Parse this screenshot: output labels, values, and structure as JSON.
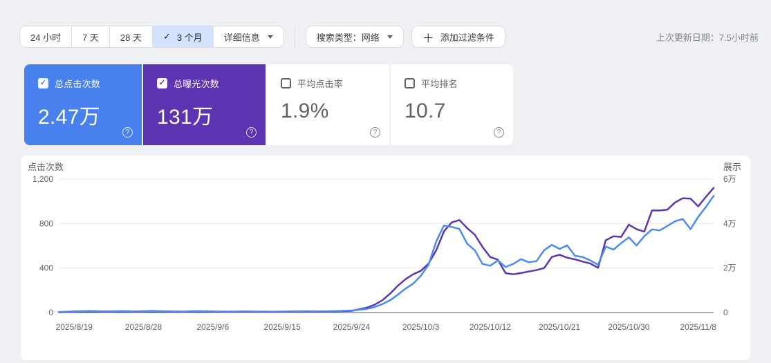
{
  "page": {
    "last_updated": "上次更新日期：7.5小时前",
    "background": "#eef0f4"
  },
  "toolbar": {
    "date_ranges": [
      {
        "label": "24 小时",
        "selected": false
      },
      {
        "label": "7 天",
        "selected": false
      },
      {
        "label": "28 天",
        "selected": false
      },
      {
        "label": "3 个月",
        "selected": true
      }
    ],
    "check_icon": "✓",
    "details_label": "详细信息",
    "search_type_label": "搜索类型：网络",
    "plus_icon": "＋",
    "add_filter_label": "添加过滤条件"
  },
  "metric_cards": [
    {
      "id": "total-clicks",
      "label": "总点击次数",
      "value": "2.47万",
      "checked": true,
      "bg": "#4880ee"
    },
    {
      "id": "total-impressions",
      "label": "总曝光次数",
      "value": "131万",
      "checked": true,
      "bg": "#5c33b0"
    },
    {
      "id": "avg-ctr",
      "label": "平均点击率",
      "value": "1.9%",
      "checked": false,
      "bg": "#ffffff"
    },
    {
      "id": "avg-position",
      "label": "平均排名",
      "value": "10.7",
      "checked": false,
      "bg": "#ffffff"
    }
  ],
  "help_glyph": "?",
  "chart_data": {
    "type": "line",
    "left_axis": {
      "title": "点击次数",
      "ticks": [
        1200,
        800,
        400,
        0
      ],
      "tick_labels": [
        "1,200",
        "800",
        "400",
        "0"
      ],
      "max": 1200
    },
    "right_axis": {
      "title": "展示",
      "ticks": [
        60000,
        40000,
        20000,
        0
      ],
      "tick_labels": [
        "6万",
        "4万",
        "2万",
        "0"
      ],
      "max": 60000
    },
    "x_range": [
      "2025/8/17",
      "2025/11/10"
    ],
    "x_labels": [
      "2025/8/19",
      "2025/8/28",
      "2025/9/6",
      "2025/9/15",
      "2025/9/24",
      "2025/10/3",
      "2025/10/12",
      "2025/10/21",
      "2025/10/30",
      "2025/11/8"
    ],
    "grid_color": "#e8e9eb",
    "baseline_color": "#8c9096",
    "label_color": "#5f6368",
    "legend_position": "none",
    "dates": [
      "2025/8/17",
      "2025/8/19",
      "2025/8/21",
      "2025/8/23",
      "2025/8/25",
      "2025/8/27",
      "2025/8/29",
      "2025/8/31",
      "2025/9/2",
      "2025/9/4",
      "2025/9/6",
      "2025/9/8",
      "2025/9/10",
      "2025/9/12",
      "2025/9/14",
      "2025/9/16",
      "2025/9/18",
      "2025/9/20",
      "2025/9/22",
      "2025/9/24",
      "2025/9/26",
      "2025/9/27",
      "2025/9/28",
      "2025/9/29",
      "2025/9/30",
      "2025/10/1",
      "2025/10/2",
      "2025/10/3",
      "2025/10/4",
      "2025/10/5",
      "2025/10/6",
      "2025/10/7",
      "2025/10/8",
      "2025/10/9",
      "2025/10/10",
      "2025/10/11",
      "2025/10/12",
      "2025/10/13",
      "2025/10/14",
      "2025/10/15",
      "2025/10/16",
      "2025/10/17",
      "2025/10/18",
      "2025/10/19",
      "2025/10/20",
      "2025/10/21",
      "2025/10/22",
      "2025/10/23",
      "2025/10/24",
      "2025/10/25",
      "2025/10/26",
      "2025/10/27",
      "2025/10/28",
      "2025/10/29",
      "2025/10/30",
      "2025/10/31",
      "2025/11/1",
      "2025/11/2",
      "2025/11/3",
      "2025/11/4",
      "2025/11/5",
      "2025/11/6",
      "2025/11/7",
      "2025/11/8",
      "2025/11/9",
      "2025/11/10"
    ],
    "series": [
      {
        "name": "展示",
        "axis": "right",
        "color": "#5e35b1",
        "values": [
          150,
          300,
          400,
          300,
          400,
          350,
          450,
          350,
          300,
          400,
          350,
          300,
          400,
          350,
          300,
          400,
          450,
          400,
          500,
          750,
          2200,
          3500,
          5500,
          8500,
          12000,
          15000,
          17200,
          18750,
          22000,
          28000,
          36500,
          40500,
          41550,
          38000,
          35000,
          29500,
          24950,
          23750,
          17700,
          17200,
          17750,
          18450,
          19050,
          20000,
          24950,
          26000,
          24650,
          23900,
          22900,
          22050,
          20100,
          32500,
          34300,
          34000,
          39500,
          37500,
          36350,
          45900,
          45900,
          46250,
          49500,
          51400,
          51200,
          47750,
          52000,
          56050
        ]
      },
      {
        "name": "点击次数",
        "axis": "left",
        "color": "#4a8af4",
        "values": [
          5,
          10,
          14,
          10,
          13,
          10,
          15,
          11,
          9,
          13,
          10,
          8,
          11,
          9,
          7,
          10,
          12,
          10,
          13,
          18,
          33,
          50,
          75,
          110,
          160,
          215,
          260,
          330,
          430,
          640,
          783,
          770,
          752,
          620,
          560,
          437,
          421,
          468,
          410,
          437,
          480,
          452,
          462,
          560,
          609,
          572,
          603,
          510,
          499,
          468,
          430,
          593,
          566,
          624,
          676,
          603,
          686,
          748,
          738,
          779,
          820,
          841,
          750,
          860,
          950,
          1049
        ]
      }
    ]
  }
}
